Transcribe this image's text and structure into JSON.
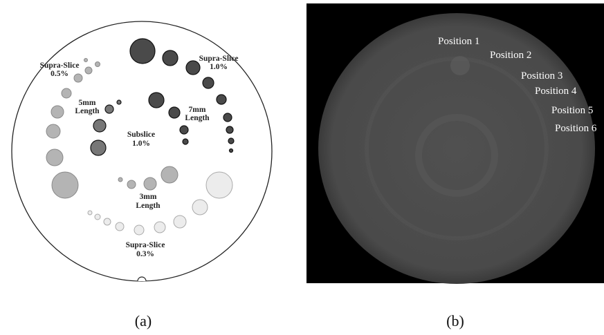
{
  "panel_a": {
    "labels": [
      [
        "Supra-Slice",
        "0.5%"
      ],
      [
        "Supra-Slice",
        "1.0%"
      ],
      [
        "5mm",
        "Length"
      ],
      [
        "7mm",
        "Length"
      ],
      [
        "Subslice",
        "1.0%"
      ],
      [
        "3mm",
        "Length"
      ],
      [
        "Supra-Slice",
        "0.3%"
      ]
    ],
    "caption": "(a)"
  },
  "panel_b": {
    "labels": [
      "Position 1",
      "Position 2",
      "Position 3",
      "Position 4",
      "Position 5",
      "Position 6"
    ],
    "caption": "(b)"
  }
}
